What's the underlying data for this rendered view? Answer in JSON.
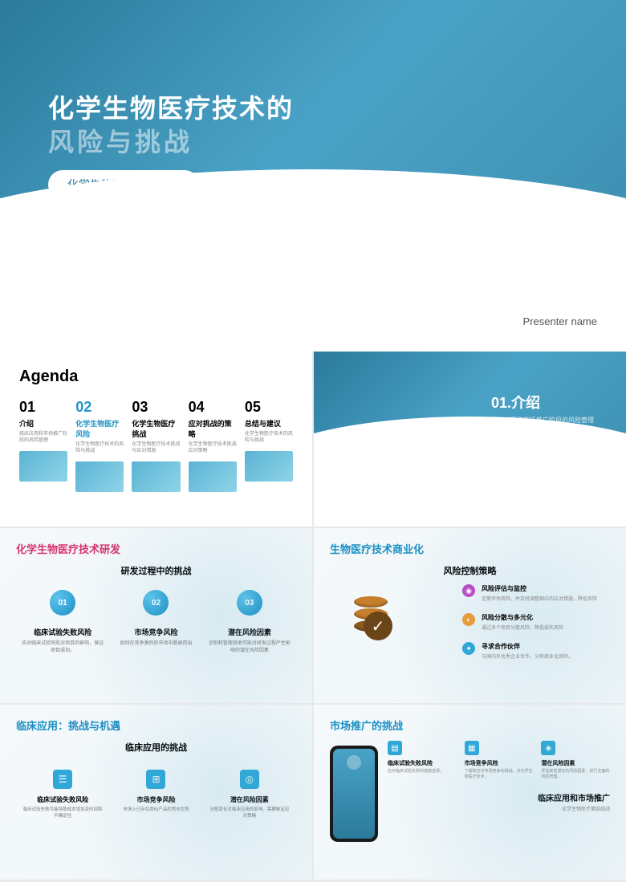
{
  "colors": {
    "primary": "#2b7a9b",
    "accent": "#1a8fc4",
    "pink": "#d6336c",
    "orange": "#c77f2e"
  },
  "s1": {
    "title_l1": "化学生物医疗技术的",
    "title_l2": "风险与挑战",
    "subtitle": "化学生物医疗风险分析",
    "presenter": "Presenter name"
  },
  "s2": {
    "title": "Agenda",
    "items": [
      {
        "num": "01",
        "label": "介绍",
        "desc": "临床应用和市场推广阶段的风险管理"
      },
      {
        "num": "02",
        "label": "化学生物医疗风险",
        "desc": "化学生物医疗技术的风险与挑战"
      },
      {
        "num": "03",
        "label": "化学生物医疗挑战",
        "desc": "化学生物医疗技术挑战与应对措施"
      },
      {
        "num": "04",
        "label": "应对挑战的策略",
        "desc": "化学生物医疗技术挑战应对策略"
      },
      {
        "num": "05",
        "label": "总结与建议",
        "desc": "化学生物医疗技术的风险与挑战"
      }
    ]
  },
  "s3": {
    "title": "01.介绍",
    "subtitle": "临床应用和市场推广阶段的风险管理"
  },
  "s4": {
    "title": "化学生物医疗技术研发",
    "subtitle": "研发过程中的挑战",
    "items": [
      {
        "num": "01",
        "t": "临床试验失败风险",
        "d": "应对临床试验失败对项目的影响，保证项目成功。"
      },
      {
        "num": "02",
        "t": "市场竞争风险",
        "d": "如何在竞争激烈的市场中脱颖而出"
      },
      {
        "num": "03",
        "t": "潜在风险因素",
        "d": "识别和管理其他可能对研发过程产生影响的潜在风险因素"
      }
    ]
  },
  "s5": {
    "title": "生物医疗技术商业化",
    "subtitle": "风险控制策略",
    "items": [
      {
        "icon": "◉",
        "cls": "ic-purple",
        "t": "风险评估与监控",
        "d": "定期评估风险，并及时调整相应的应对措施，降低风险"
      },
      {
        "icon": "◐",
        "cls": "ic-orange",
        "t": "风险分散与多元化",
        "d": "通过多个项目分散风险，降低损失风险"
      },
      {
        "icon": "✦",
        "cls": "ic-blue",
        "t": "寻求合作伙伴",
        "d": "与国内外优秀企业合作，分担商业化风险。"
      }
    ]
  },
  "s6": {
    "title": "临床应用：挑战与机遇",
    "subtitle": "临床应用的挑战",
    "items": [
      {
        "icon": "☰",
        "t": "临床试验失败风险",
        "d": "临床试验失败可能导致成本增加及时间和不确定性"
      },
      {
        "icon": "⊞",
        "t": "市场竞争风险",
        "d": "市场上已存在类似产品的竞化优势"
      },
      {
        "icon": "◎",
        "t": "潜在风险因素",
        "d": "法规变化对临床应用的影响，需要制定应对策略"
      }
    ]
  },
  "s7": {
    "title": "市场推广的挑战",
    "grid": [
      {
        "icon": "▤",
        "t": "临床试验失败风险",
        "d": "应对临床试验失败的措施选择。"
      },
      {
        "icon": "▦",
        "t": "市场竞争风险",
        "d": "了解和应对市场竞争的挑战，对化学生物医疗技术。"
      },
      {
        "icon": "◈",
        "t": "潜在风险因素",
        "d": "评估其他潜在的风险因素，进行全面的风险管理。"
      }
    ],
    "bottom_t": "临床应用和市场推广",
    "bottom_s": "化学生物医疗面临挑战"
  }
}
